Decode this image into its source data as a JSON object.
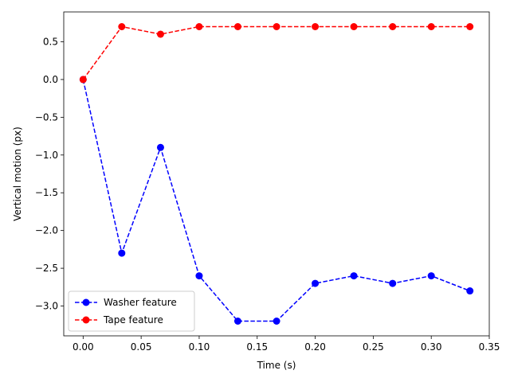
{
  "chart_data": {
    "type": "line",
    "title": "",
    "xlabel": "Time (s)",
    "ylabel": "Vertical motion (px)",
    "xlim": [
      -0.0167,
      0.35
    ],
    "ylim": [
      -3.395,
      0.895
    ],
    "xticks": [
      0.0,
      0.05,
      0.1,
      0.15,
      0.2,
      0.25,
      0.3,
      0.35
    ],
    "xtick_labels": [
      "0.00",
      "0.05",
      "0.10",
      "0.15",
      "0.20",
      "0.25",
      "0.30",
      "0.35"
    ],
    "yticks": [
      0.5,
      0.0,
      -0.5,
      -1.0,
      -1.5,
      -2.0,
      -2.5,
      -3.0
    ],
    "ytick_labels": [
      "0.5",
      "0.0",
      "−0.5",
      "−1.0",
      "−1.5",
      "−2.0",
      "−2.5",
      "−3.0"
    ],
    "grid": false,
    "legend_position": "lower-left",
    "x": [
      0.0,
      0.0333,
      0.0667,
      0.1,
      0.1333,
      0.1667,
      0.2,
      0.2333,
      0.2667,
      0.3,
      0.3333
    ],
    "series": [
      {
        "name": "Washer feature",
        "color": "#0000ff",
        "linestyle": "dashed",
        "marker": "circle",
        "values": [
          0.0,
          -2.3,
          -0.9,
          -2.6,
          -3.2,
          -3.2,
          -2.7,
          -2.6,
          -2.7,
          -2.6,
          -2.8
        ]
      },
      {
        "name": "Tape feature",
        "color": "#ff0000",
        "linestyle": "dashed",
        "marker": "circle",
        "values": [
          0.0,
          0.7,
          0.6,
          0.7,
          0.7,
          0.7,
          0.7,
          0.7,
          0.7,
          0.7,
          0.7
        ]
      }
    ]
  }
}
